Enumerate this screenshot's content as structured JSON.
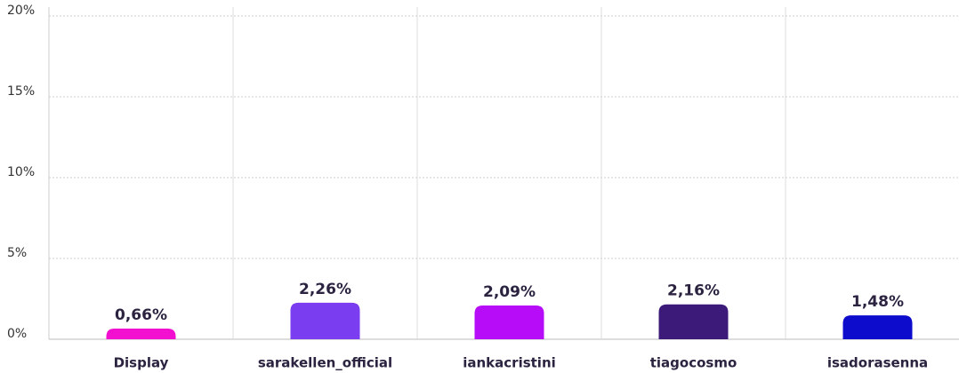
{
  "chart_data": {
    "type": "bar",
    "categories": [
      "Display",
      "sarakellen_official",
      "iankacristini",
      "tiagocosmo",
      "isadorasenna"
    ],
    "values": [
      0.66,
      2.26,
      2.09,
      2.16,
      1.48
    ],
    "value_labels": [
      "0,66%",
      "2,26%",
      "2,09%",
      "2,16%",
      "1,48%"
    ],
    "colors": [
      "#f20fcf",
      "#7a3ef0",
      "#b60cf7",
      "#3c1a7a",
      "#0d0ccc"
    ],
    "ylim": [
      0,
      20
    ],
    "yticks": [
      {
        "value": 0,
        "label": "0%"
      },
      {
        "value": 5,
        "label": "5%"
      },
      {
        "value": 10,
        "label": "10%"
      },
      {
        "value": 15,
        "label": "15%"
      },
      {
        "value": 20,
        "label": "20%"
      }
    ],
    "grid": true
  }
}
